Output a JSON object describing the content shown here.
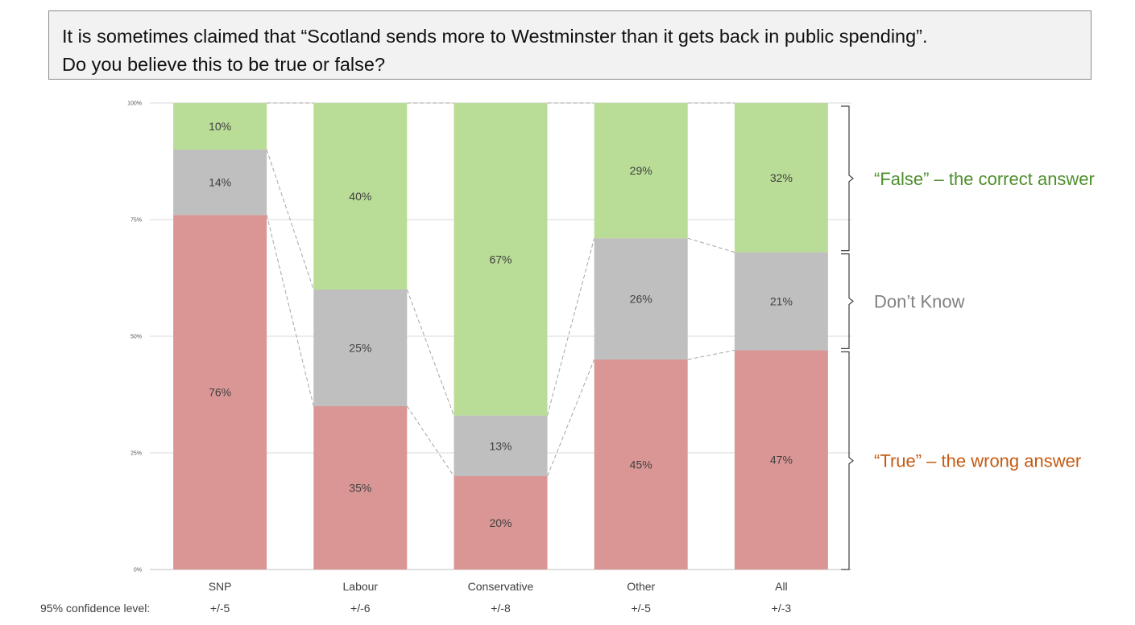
{
  "question": {
    "line1": "It is sometimes claimed that “Scotland sends more to Westminster than it gets back in public spending”.",
    "line2": "Do you believe this to be true or false?"
  },
  "legend": {
    "false_label": "“False” – the correct answer",
    "dont_know_label": "Don’t Know",
    "true_label": "“True” – the wrong answer"
  },
  "confidence": {
    "label": "95% confidence level:",
    "values": [
      "+/-5",
      "+/-6",
      "+/-8",
      "+/-5",
      "+/-3"
    ]
  },
  "chart_data": {
    "type": "bar",
    "stacked": true,
    "percent_stacked": true,
    "categories": [
      "SNP",
      "Labour",
      "Conservative",
      "Other",
      "All"
    ],
    "series": [
      {
        "name": "“True” – the wrong answer",
        "values": [
          76,
          35,
          20,
          45,
          47
        ],
        "labels": [
          "76%",
          "35%",
          "20%",
          "45%",
          "47%"
        ],
        "color": "#d99694"
      },
      {
        "name": "Don’t Know",
        "values": [
          14,
          25,
          13,
          26,
          21
        ],
        "labels": [
          "14%",
          "25%",
          "13%",
          "26%",
          "21%"
        ],
        "color": "#bfbfbf"
      },
      {
        "name": "“False” – the correct answer",
        "values": [
          10,
          40,
          67,
          29,
          32
        ],
        "labels": [
          "10%",
          "40%",
          "67%",
          "29%",
          "32%"
        ],
        "color": "#b9dc96"
      }
    ],
    "ylim": [
      0,
      100
    ],
    "yticks": [
      0,
      25,
      50,
      75,
      100
    ],
    "ytick_labels": [
      "0%",
      "25%",
      "50%",
      "75%",
      "100%"
    ],
    "grid": true,
    "series_lines": true,
    "legend_position": "right",
    "label_colors": {
      "false": "#4e8f2b",
      "dont_know": "#808080",
      "true": "#c55a11"
    }
  }
}
